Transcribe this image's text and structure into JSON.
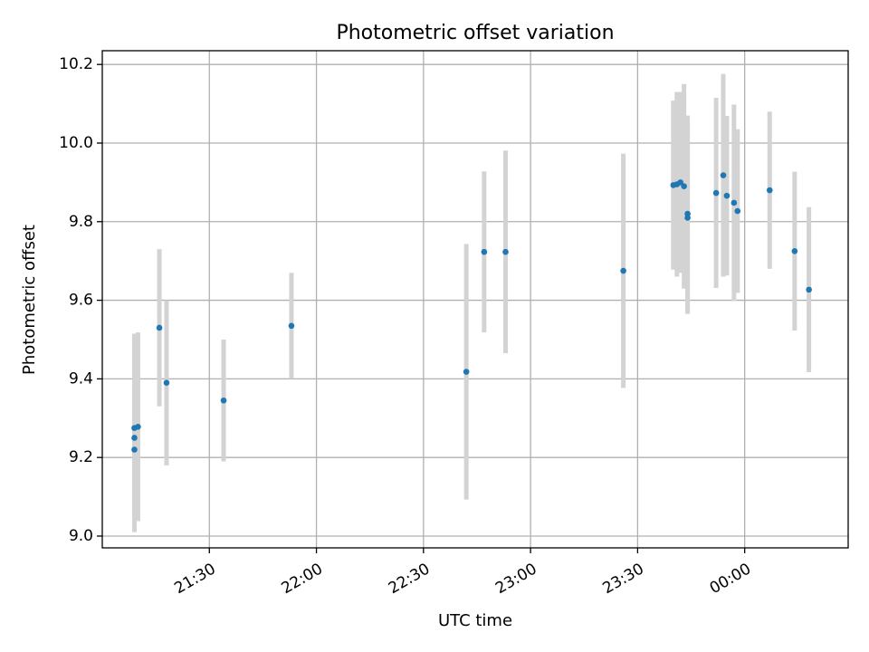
{
  "chart_data": {
    "type": "scatter",
    "title": "Photometric offset variation",
    "xlabel": "UTC time",
    "ylabel": "Photometric offset",
    "grid": true,
    "legend": "none",
    "x_unit": "UTC clock time (hh:mm); times after 23:59 fall on the following day",
    "xlim": [
      "21:00",
      "00:29"
    ],
    "ylim": [
      8.97,
      10.235
    ],
    "x_ticks": [
      "21:30",
      "22:00",
      "22:30",
      "23:00",
      "23:30",
      "00:00"
    ],
    "y_ticks": [
      9.0,
      9.2,
      9.4,
      9.6,
      9.8,
      10.0,
      10.2
    ],
    "y_tick_labels": [
      "9.0",
      "9.2",
      "9.4",
      "9.6",
      "9.8",
      "10.0",
      "10.2"
    ],
    "colors": {
      "points": "#1f77b4",
      "errorbars": "#d3d3d3",
      "grid": "#b0b0b0"
    },
    "series": [
      {
        "points": [
          {
            "x": "21:09",
            "y": 9.22,
            "err": 0.21
          },
          {
            "x": "21:09",
            "y": 9.25,
            "err": 0.18
          },
          {
            "x": "21:09",
            "y": 9.275,
            "err": 0.24
          },
          {
            "x": "21:10",
            "y": 9.278,
            "err": 0.24
          },
          {
            "x": "21:16",
            "y": 9.53,
            "err": 0.2
          },
          {
            "x": "21:18",
            "y": 9.39,
            "err": 0.21
          },
          {
            "x": "21:34",
            "y": 9.345,
            "err": 0.155
          },
          {
            "x": "21:53",
            "y": 9.535,
            "err": 0.135
          },
          {
            "x": "22:42",
            "y": 9.418,
            "err": 0.325
          },
          {
            "x": "22:47",
            "y": 9.723,
            "err": 0.205
          },
          {
            "x": "22:53",
            "y": 9.723,
            "err": 0.258
          },
          {
            "x": "23:26",
            "y": 9.675,
            "err": 0.298
          },
          {
            "x": "23:40",
            "y": 9.893,
            "err": 0.215
          },
          {
            "x": "23:41",
            "y": 9.895,
            "err": 0.235
          },
          {
            "x": "23:42",
            "y": 9.9,
            "err": 0.23
          },
          {
            "x": "23:43",
            "y": 9.89,
            "err": 0.26
          },
          {
            "x": "23:44",
            "y": 9.82,
            "err": 0.25
          },
          {
            "x": "23:44",
            "y": 9.81,
            "err": 0.245
          },
          {
            "x": "23:52",
            "y": 9.873,
            "err": 0.242
          },
          {
            "x": "23:54",
            "y": 9.918,
            "err": 0.258
          },
          {
            "x": "23:55",
            "y": 9.866,
            "err": 0.203
          },
          {
            "x": "23:57",
            "y": 9.848,
            "err": 0.25
          },
          {
            "x": "23:58",
            "y": 9.827,
            "err": 0.208
          },
          {
            "x": "00:07",
            "y": 9.88,
            "err": 0.2
          },
          {
            "x": "00:14",
            "y": 9.725,
            "err": 0.202
          },
          {
            "x": "00:18",
            "y": 9.627,
            "err": 0.21
          }
        ]
      }
    ]
  }
}
